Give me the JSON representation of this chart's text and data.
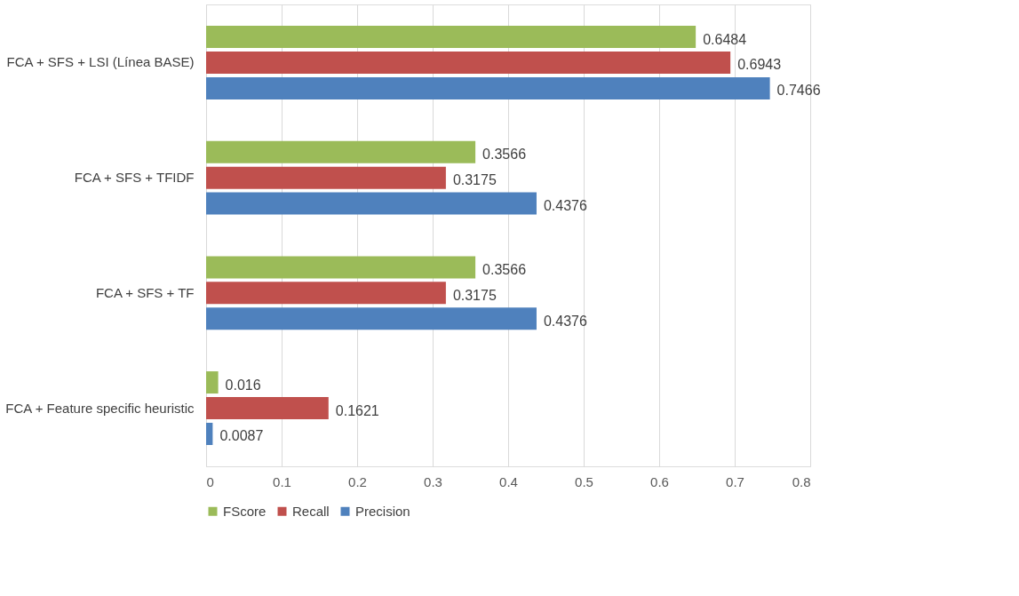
{
  "chart_data": {
    "type": "bar",
    "orientation": "horizontal",
    "categories": [
      "FCA + SFS + LSI (Línea BASE)",
      "FCA +  SFS + TFIDF",
      "FCA + SFS + TF",
      "FCA + Feature specific heuristic"
    ],
    "series": [
      {
        "name": "FScore",
        "color": "#9bbb59",
        "values": [
          0.6484,
          0.3566,
          0.3566,
          0.016
        ]
      },
      {
        "name": "Recall",
        "color": "#c0504d",
        "values": [
          0.6943,
          0.3175,
          0.3175,
          0.1621
        ]
      },
      {
        "name": "Precision",
        "color": "#4f81bd",
        "values": [
          0.7466,
          0.4376,
          0.4376,
          0.0087
        ]
      }
    ],
    "xlim": [
      0,
      0.8
    ],
    "xticks": [
      0,
      0.1,
      0.2,
      0.3,
      0.4,
      0.5,
      0.6,
      0.7,
      0.8
    ],
    "grid": "x",
    "legend": "bottom",
    "data_labels": true
  }
}
